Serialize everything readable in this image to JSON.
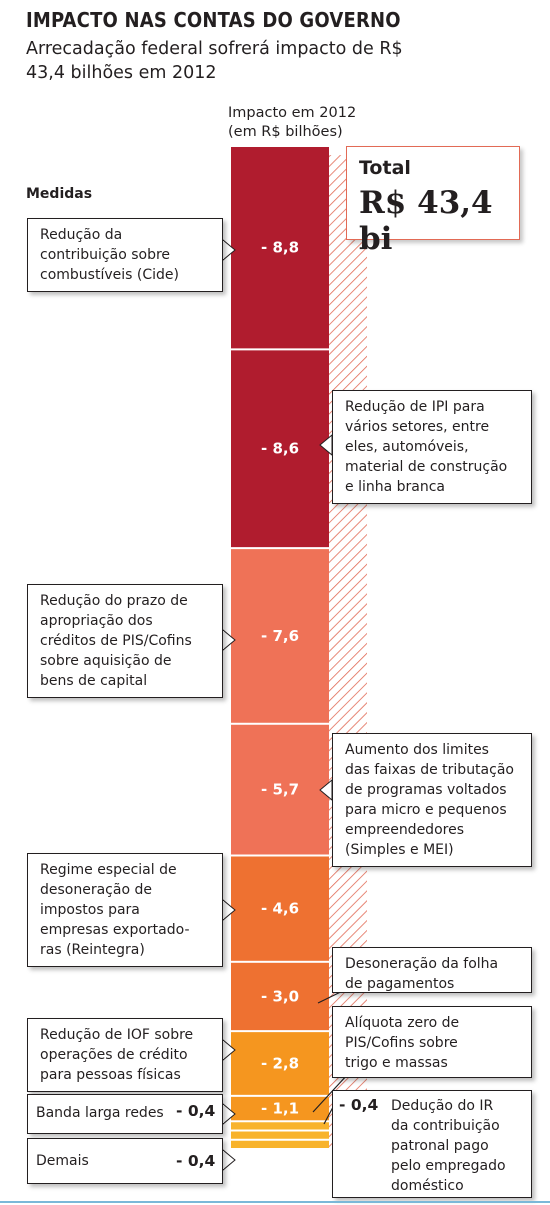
{
  "title": "IMPACTO NAS CONTAS DO GOVERNO",
  "subtitle": "Arrecadação federal sofrerá impacto de R$ 43,4 bilhões em 2012",
  "axis_title_line1": "Impacto em 2012",
  "axis_title_line2": "(em R$ bilhões)",
  "column_header": "Medidas",
  "total": {
    "label": "Total",
    "value": "R$ 43,4 bi"
  },
  "colors": {
    "dark_red": "#b01c2e",
    "salmon": "#ef7257",
    "orange": "#ee7131",
    "amber": "#f5961f",
    "yellow": "#f8b32c"
  },
  "chart_data": {
    "type": "bar",
    "orientation": "stacked-vertical",
    "unit": "R$ bilhões",
    "total": 43.4,
    "segments": [
      {
        "label": "Redução da contribuição sobre combustíveis (Cide)",
        "value": -8.8,
        "display": "- 8,8",
        "color": "#b01c2e"
      },
      {
        "label": "Redução de IPI para vários setores, entre eles, automóveis, material de construção e linha branca",
        "value": -8.6,
        "display": "- 8,6",
        "color": "#b01c2e"
      },
      {
        "label": "Redução do prazo de apropriação dos créditos de PIS/Cofins sobre aquisição de bens de capital",
        "value": -7.6,
        "display": "- 7,6",
        "color": "#ef7257"
      },
      {
        "label": "Aumento dos limites das faixas de tributação de programas voltados para micro e pequenos empreendedores (Simples e MEI)",
        "value": -5.7,
        "display": "- 5,7",
        "color": "#ef7257"
      },
      {
        "label": "Regime especial de desoneração de impostos para empresas exportadoras (Reintegra)",
        "value": -4.6,
        "display": "- 4,6",
        "color": "#ee7131"
      },
      {
        "label": "Desoneração da folha de pagamentos",
        "value": -3.0,
        "display": "- 3,0",
        "color": "#ee7131"
      },
      {
        "label": "Alíquota zero de PIS/Cofins sobre trigo e massas",
        "value": -2.8,
        "display": "- 2,8",
        "color": "#f5961f"
      },
      {
        "label": "Redução de IOF sobre operações de crédito para pessoas físicas",
        "value": -1.1,
        "display": "- 1,1",
        "color": "#f5961f"
      },
      {
        "label": "Banda larga redes",
        "value": -0.4,
        "display": "- 0,4",
        "color": "#f8b32c"
      },
      {
        "label": "Dedução do IR da contribuição patronal pago pelo empregado doméstico",
        "value": -0.4,
        "display": "- 0,4",
        "color": "#f8b32c"
      },
      {
        "label": "Demais",
        "value": -0.4,
        "display": "- 0,4",
        "color": "#f8b32c"
      }
    ]
  },
  "callouts": {
    "cide": [
      "Redução da",
      "contribuição sobre",
      "combustíveis (Cide)"
    ],
    "ipi": [
      "Redução de IPI para",
      "vários setores, entre",
      "eles, automóveis,",
      "material de construção",
      "e linha branca"
    ],
    "pis_cofins": [
      "Redução do prazo de",
      "apropriação dos",
      "créditos de PIS/Cofins",
      "sobre aquisição de",
      "bens de capital"
    ],
    "simples": [
      "Aumento dos limites",
      "das faixas de tributação",
      "de programas voltados",
      "para micro e pequenos",
      "empreendedores",
      "(Simples e MEI)"
    ],
    "reintegra": [
      "Regime especial de",
      "desoneração de",
      "impostos para",
      "empresas exportado-",
      "ras (Reintegra)"
    ],
    "folha": [
      "Desoneração da folha",
      "de pagamentos"
    ],
    "trigo": [
      "Alíquota zero de",
      "PIS/Cofins sobre",
      "trigo e massas"
    ],
    "iof": [
      "Redução de IOF sobre",
      "operações de crédito",
      "para pessoas físicas"
    ],
    "banda": {
      "label": "Banda larga redes",
      "value": "- 0,4"
    },
    "ir": {
      "value": "- 0,4",
      "lines": [
        "Dedução do IR",
        "da contribuição",
        "patronal pago",
        "pelo empregado",
        "doméstico"
      ]
    },
    "demais": {
      "label": "Demais",
      "value": "- 0,4"
    }
  }
}
